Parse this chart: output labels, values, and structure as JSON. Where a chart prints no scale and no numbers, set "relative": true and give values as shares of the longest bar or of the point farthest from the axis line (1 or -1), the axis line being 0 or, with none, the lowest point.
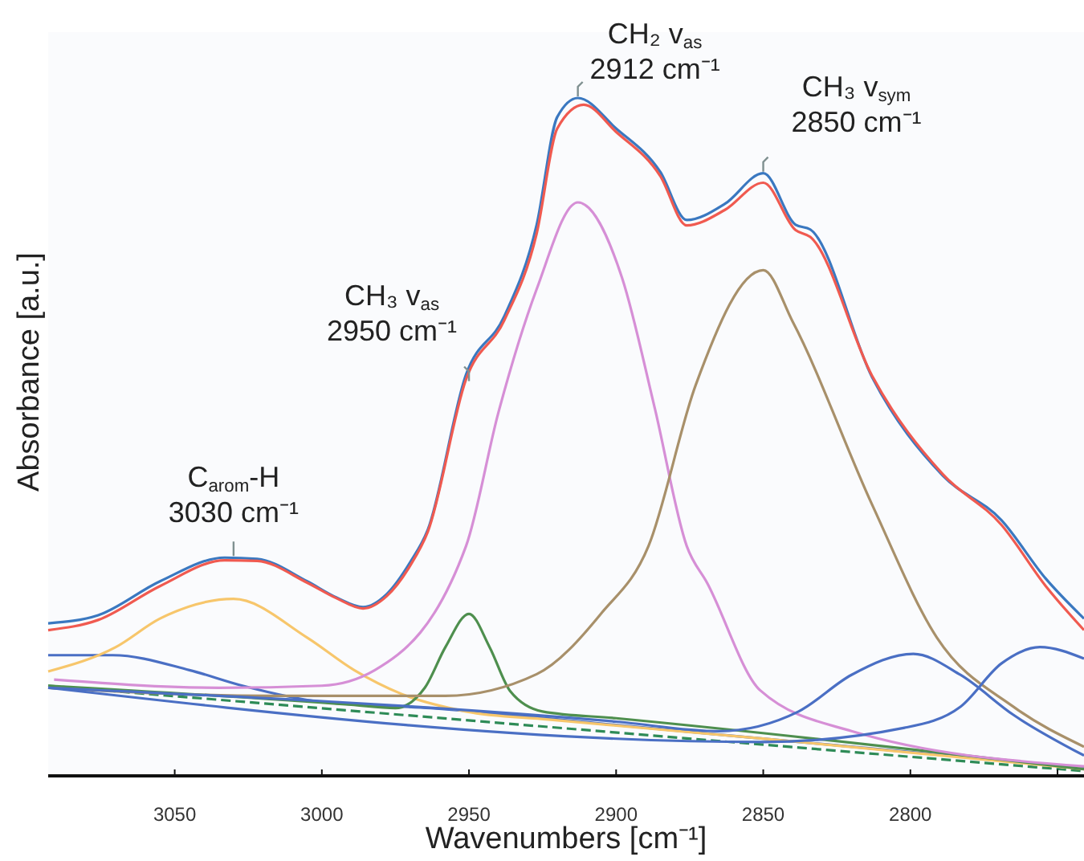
{
  "chart_data": {
    "type": "line",
    "relative": true,
    "xlabel": "Wavenumbers [cm⁻¹]",
    "ylabel": "Absorbance [a.u.]",
    "xlim": [
      3093,
      2741
    ],
    "xticks": [
      3050,
      3000,
      2950,
      2900,
      2850,
      2800,
      {
        "value": 2750,
        "label": null
      }
    ],
    "grid": false,
    "marker": "none",
    "tick_labels": "x",
    "series": [
      {
        "color": "#2e8b57",
        "line_style": "dashed",
        "x": [
          3093,
          2741
        ],
        "values": [
          0.133,
          0.007
        ]
      },
      {
        "color": "#4a6fc4",
        "x": [
          3093,
          3071,
          3045,
          3027,
          3000,
          2963,
          2900,
          2800,
          2741
        ],
        "values": [
          0.178,
          0.178,
          0.156,
          0.133,
          0.109,
          0.1,
          0.075,
          0.035,
          0.012
        ]
      },
      {
        "color": "#f7c66b",
        "x": [
          3093,
          3070,
          3055,
          3030,
          3005,
          2989,
          2973,
          2951,
          2923,
          2850,
          2741
        ],
        "values": [
          0.154,
          0.19,
          0.232,
          0.261,
          0.204,
          0.156,
          0.121,
          0.095,
          0.083,
          0.055,
          0.01
        ]
      },
      {
        "color": "#4e8f4e",
        "x": [
          3093,
          2990,
          2975,
          2965,
          2958,
          2950,
          2943,
          2936,
          2925,
          2900,
          2741
        ],
        "values": [
          0.133,
          0.105,
          0.1,
          0.13,
          0.19,
          0.239,
          0.19,
          0.125,
          0.095,
          0.085,
          0.01
        ]
      },
      {
        "color": "#d68fd6",
        "x": [
          3091,
          3035,
          3000,
          2982,
          2951,
          2940,
          2927,
          2913,
          2898,
          2887,
          2876,
          2869,
          2851,
          2820,
          2741
        ],
        "values": [
          0.142,
          0.13,
          0.133,
          0.156,
          0.339,
          0.536,
          0.718,
          0.846,
          0.735,
          0.545,
          0.339,
          0.284,
          0.126,
          0.066,
          0.014
        ]
      },
      {
        "color": "#a8906a",
        "x": [
          3093,
          3018,
          2958,
          2927,
          2905,
          2889,
          2873,
          2850,
          2840,
          2813,
          2791,
          2765,
          2741
        ],
        "values": [
          0.13,
          0.118,
          0.118,
          0.15,
          0.24,
          0.339,
          0.576,
          0.746,
          0.67,
          0.4,
          0.204,
          0.102,
          0.043
        ]
      },
      {
        "color": "#4a6fc4",
        "x": [
          3093,
          2900,
          2865,
          2838,
          2820,
          2799,
          2783,
          2765,
          2741
        ],
        "values": [
          0.13,
          0.08,
          0.066,
          0.095,
          0.149,
          0.18,
          0.149,
          0.09,
          0.03
        ]
      },
      {
        "color": "#4a6fc4",
        "x": [
          3093,
          2850,
          2802,
          2783,
          2769,
          2756,
          2741
        ],
        "values": [
          0.13,
          0.05,
          0.071,
          0.102,
          0.166,
          0.19,
          0.173
        ]
      },
      {
        "color": "#3a78c0",
        "x": [
          3093,
          3076,
          3055,
          3033,
          3022,
          3005,
          2995,
          2986,
          2978,
          2970,
          2964,
          2951,
          2938,
          2927,
          2920,
          2913,
          2900,
          2885,
          2876,
          2863,
          2850,
          2839,
          2834,
          2813,
          2789,
          2769,
          2754,
          2741
        ],
        "values": [
          0.225,
          0.237,
          0.287,
          0.322,
          0.32,
          0.287,
          0.263,
          0.249,
          0.268,
          0.315,
          0.363,
          0.592,
          0.678,
          0.813,
          0.972,
          1.0,
          0.955,
          0.891,
          0.82,
          0.844,
          0.889,
          0.813,
          0.806,
          0.588,
          0.443,
          0.377,
          0.291,
          0.232
        ]
      },
      {
        "color": "#f05a50",
        "x": [
          3093,
          3076,
          3055,
          3033,
          3022,
          3005,
          2995,
          2986,
          2978,
          2970,
          2964,
          2951,
          2938,
          2927,
          2920,
          2911,
          2900,
          2885,
          2876,
          2863,
          2850,
          2839,
          2834,
          2813,
          2789,
          2769,
          2754,
          2741
        ],
        "values": [
          0.215,
          0.23,
          0.28,
          0.318,
          0.317,
          0.285,
          0.262,
          0.247,
          0.265,
          0.31,
          0.36,
          0.585,
          0.672,
          0.8,
          0.955,
          0.99,
          0.95,
          0.885,
          0.812,
          0.835,
          0.875,
          0.805,
          0.795,
          0.59,
          0.445,
          0.37,
          0.28,
          0.215
        ]
      }
    ],
    "annotations": [
      {
        "text": "C$_{arom}$-H\n3030 cm⁻¹",
        "x": 3030,
        "y": 0.322
      },
      {
        "text": "CH₃ v$_{as}$\n2950 cm⁻¹",
        "x": 2950,
        "y": 0.58
      },
      {
        "text": "CH₂ v$_{as}$\n2912 cm⁻¹",
        "x": 2913,
        "y": 1.0
      },
      {
        "text": "CH₃ v$_{sym}$\n2850 cm⁻¹",
        "x": 2850,
        "y": 0.889
      }
    ]
  }
}
